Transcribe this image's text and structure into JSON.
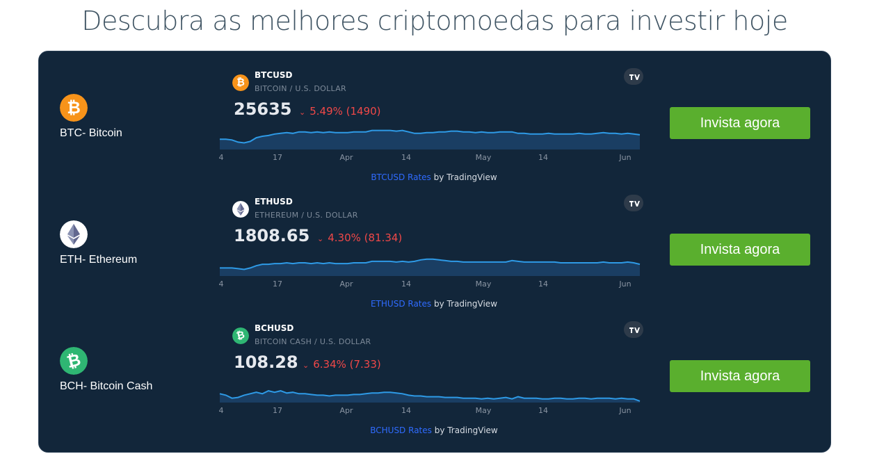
{
  "page": {
    "title": "Descubra as melhores criptomoedas para investir hoje"
  },
  "axis_labels": [
    "4",
    "17",
    "Apr",
    "14",
    "May",
    "14",
    "Jun"
  ],
  "cta_label": "Invista agora",
  "coins": [
    {
      "name": "BTC- Bitcoin",
      "logo_color": "#f7931a",
      "logo_icon": "bitcoin-icon",
      "symbol": "BTCUSD",
      "description": "BITCOIN / U.S. DOLLAR",
      "price": "25635",
      "change": "5.49% (1490)",
      "change_direction": "down",
      "credit_link": "BTCUSD Rates",
      "credit_by": " by TradingView",
      "series": [
        28,
        28,
        27,
        24,
        23,
        25,
        30,
        32,
        33,
        35,
        36,
        37,
        36,
        38,
        38,
        37,
        38,
        37,
        38,
        37,
        37,
        37,
        38,
        38,
        38,
        40,
        40,
        40,
        40,
        39,
        40,
        38,
        36,
        36,
        37,
        37,
        38,
        38,
        39,
        39,
        38,
        38,
        37,
        38,
        37,
        37,
        38,
        38,
        38,
        36,
        36,
        35,
        35,
        35,
        36,
        35,
        35,
        35,
        35,
        36,
        35,
        35,
        36,
        37,
        36,
        36,
        35,
        36,
        35,
        34
      ]
    },
    {
      "name": "ETH- Ethereum",
      "logo_color": "#ffffff",
      "logo_icon": "ethereum-icon",
      "symbol": "ETHUSD",
      "description": "ETHEREUM / U.S. DOLLAR",
      "price": "1808.65",
      "change": "4.30% (81.34)",
      "change_direction": "down",
      "credit_link": "ETHUSD Rates",
      "credit_by": " by TradingView",
      "series": [
        25,
        25,
        25,
        24,
        23,
        25,
        28,
        30,
        30,
        31,
        31,
        32,
        31,
        32,
        32,
        31,
        32,
        31,
        32,
        31,
        31,
        31,
        32,
        32,
        32,
        34,
        34,
        34,
        34,
        33,
        34,
        33,
        34,
        36,
        37,
        37,
        36,
        35,
        34,
        34,
        33,
        33,
        33,
        33,
        33,
        33,
        33,
        33,
        35,
        34,
        33,
        33,
        33,
        33,
        33,
        33,
        32,
        32,
        32,
        32,
        32,
        32,
        32,
        33,
        32,
        32,
        32,
        33,
        32,
        30
      ]
    },
    {
      "name": "BCH- Bitcoin Cash",
      "logo_color": "#2fb673",
      "logo_icon": "bitcoin-cash-icon",
      "symbol": "BCHUSD",
      "description": "BITCOIN CASH / U.S. DOLLAR",
      "price": "108.28",
      "change": "6.34% (7.33)",
      "change_direction": "down",
      "credit_link": "BCHUSD Rates",
      "credit_by": " by TradingView",
      "series": [
        26,
        24,
        20,
        21,
        24,
        26,
        28,
        26,
        30,
        28,
        30,
        27,
        28,
        26,
        26,
        25,
        24,
        24,
        23,
        24,
        24,
        24,
        25,
        25,
        26,
        27,
        27,
        28,
        28,
        27,
        26,
        24,
        23,
        23,
        22,
        22,
        22,
        21,
        21,
        21,
        20,
        20,
        20,
        19,
        20,
        19,
        20,
        21,
        19,
        22,
        20,
        20,
        20,
        19,
        19,
        20,
        20,
        19,
        19,
        20,
        20,
        19,
        20,
        20,
        20,
        19,
        20,
        19,
        19,
        16
      ]
    }
  ]
}
